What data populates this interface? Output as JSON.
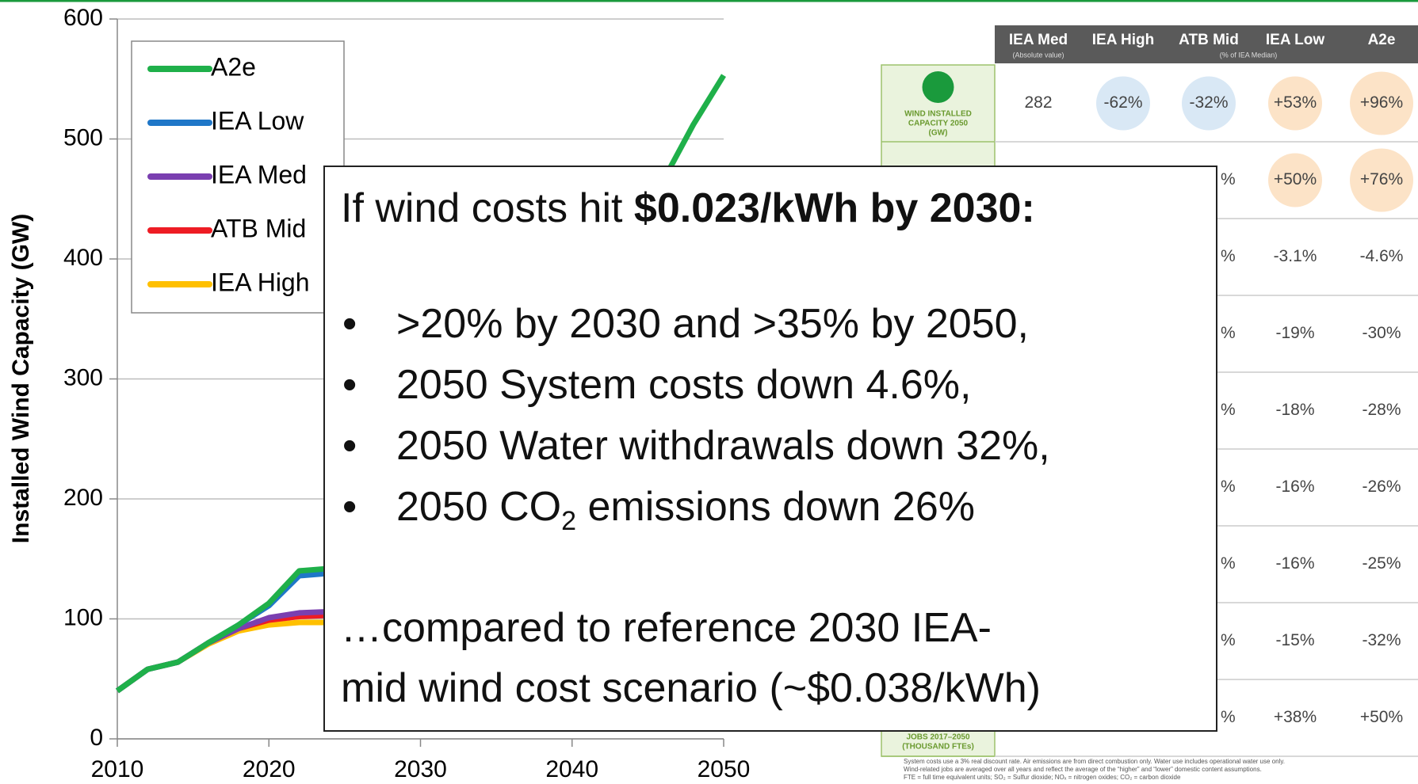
{
  "chart_data": {
    "type": "line",
    "ylabel": "Installed Wind Capacity (GW)",
    "x": [
      2010,
      2012,
      2014,
      2016,
      2018,
      2020,
      2022,
      2024,
      2026,
      2028,
      2030,
      2032,
      2034,
      2036,
      2038,
      2040,
      2042,
      2044,
      2046,
      2048,
      2050
    ],
    "series": [
      {
        "name": "A2e",
        "color": "#1fb04a",
        "values": [
          40,
          58,
          64,
          80,
          95,
          113,
          140,
          142,
          170,
          200,
          235,
          265,
          295,
          325,
          355,
          385,
          415,
          440,
          465,
          512,
          553
        ]
      },
      {
        "name": "IEA Low",
        "color": "#1f77c8",
        "values": [
          40,
          58,
          64,
          80,
          95,
          111,
          136,
          138,
          null,
          null,
          null,
          null,
          null,
          null,
          null,
          null,
          null,
          null,
          null,
          null,
          null
        ]
      },
      {
        "name": "IEA Med",
        "color": "#7a3fb0",
        "values": [
          40,
          58,
          64,
          80,
          92,
          101,
          105,
          106,
          null,
          null,
          null,
          null,
          null,
          null,
          null,
          null,
          null,
          null,
          null,
          null,
          null
        ]
      },
      {
        "name": "ATB Mid",
        "color": "#ee1c24",
        "values": [
          40,
          58,
          64,
          80,
          92,
          99,
          102,
          103,
          null,
          null,
          null,
          null,
          null,
          null,
          null,
          null,
          null,
          null,
          null,
          null,
          null
        ]
      },
      {
        "name": "IEA High",
        "color": "#ffc000",
        "values": [
          40,
          58,
          64,
          79,
          90,
          95,
          97,
          97,
          null,
          null,
          null,
          null,
          null,
          null,
          null,
          null,
          null,
          null,
          null,
          null,
          null
        ]
      }
    ],
    "xlim": [
      2010,
      2050
    ],
    "xticks": [
      2010,
      2020,
      2030,
      2040,
      2050
    ],
    "ylim": [
      0,
      600
    ],
    "yticks": [
      0,
      100,
      200,
      300,
      400,
      500,
      600
    ],
    "grid": true,
    "legend": "upper left"
  },
  "table": {
    "columns": [
      "IEA Med",
      "IEA High",
      "ATB Mid",
      "IEA Low",
      "A2e"
    ],
    "subheaders": [
      "(Absolute value)",
      "(% of IEA Median)"
    ],
    "rows": [
      {
        "label_lines": [
          "WIND INSTALLED",
          "CAPACITY 2050",
          "(GW)"
        ],
        "cells": [
          "282",
          "-62%",
          "-32%",
          "+53%",
          "+96%"
        ]
      },
      {
        "label_lines": null,
        "cells": [
          null,
          null,
          "%",
          "+50%",
          "+76%"
        ]
      },
      {
        "label_lines": null,
        "cells": [
          null,
          null,
          "%",
          "-3.1%",
          "-4.6%"
        ]
      },
      {
        "label_lines": null,
        "cells": [
          null,
          null,
          "%",
          "-19%",
          "-30%"
        ]
      },
      {
        "label_lines": null,
        "cells": [
          null,
          null,
          "%",
          "-18%",
          "-28%"
        ]
      },
      {
        "label_lines": null,
        "cells": [
          null,
          null,
          "%",
          "-16%",
          "-26%"
        ]
      },
      {
        "label_lines": null,
        "cells": [
          null,
          null,
          "%",
          "-16%",
          "-25%"
        ]
      },
      {
        "label_lines": null,
        "cells": [
          null,
          null,
          "%",
          "-15%",
          "-32%"
        ]
      },
      {
        "label_lines": [
          "JOBS 2017–2050",
          "(THOUSAND FTEs)"
        ],
        "cells": [
          null,
          null,
          "%",
          "+38%",
          "+50%"
        ]
      }
    ],
    "footnotes": [
      "System costs use a 3% real discount rate. Air emissions are from direct combustion only. Water use includes operational water use only.",
      "Wind-related jobs are averaged over all years and reflect the average of the “higher” and “lower” domestic content assumptions.",
      "FTE = full time equivalent units; SO₂ = Sulfur dioxide; NOₓ = nitrogen oxides; CO₂ = carbon dioxide"
    ]
  },
  "callout": {
    "heading": "If wind costs hit ",
    "heading_bold": "$0.023/kWh by 2030:",
    "bullets": [
      ">20% by 2030 and >35% by 2050,",
      "2050 System costs down 4.6%,",
      "2050 Water withdrawals down 32%,"
    ],
    "co2_bullet": {
      "before": "2050 CO",
      "sub": "2",
      "after": " emissions down 26%"
    },
    "footer_lines": [
      "…compared to reference 2030 IEA-",
      "mid wind cost scenario (~$0.038/kWh)"
    ]
  }
}
